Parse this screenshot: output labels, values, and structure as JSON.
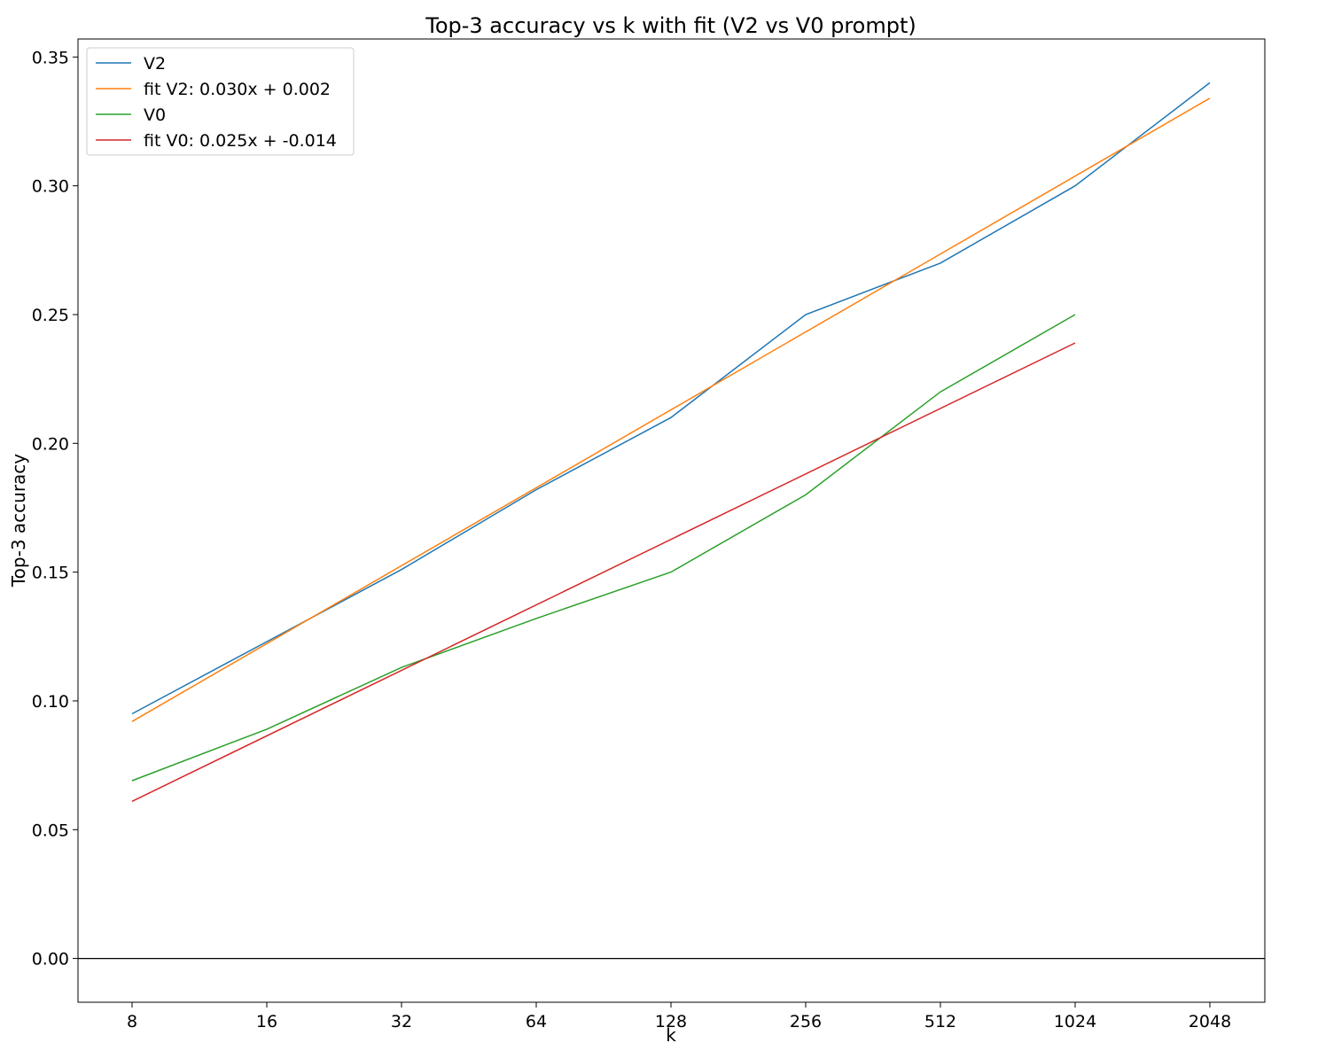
{
  "chart_data": {
    "type": "line",
    "title": "Top-3 accuracy vs k with fit (V2 vs V0 prompt)",
    "xlabel": "k",
    "ylabel": "Top-3 accuracy",
    "x_scale": "log2",
    "x": [
      8,
      16,
      32,
      64,
      128,
      256,
      512,
      1024,
      2048
    ],
    "xticks": [
      "8",
      "16",
      "32",
      "64",
      "128",
      "256",
      "512",
      "1024",
      "2048"
    ],
    "ylim": [
      -0.017,
      0.357
    ],
    "yticks": [
      "0.00",
      "0.05",
      "0.10",
      "0.15",
      "0.20",
      "0.25",
      "0.30",
      "0.35"
    ],
    "ytick_values": [
      0.0,
      0.05,
      0.1,
      0.15,
      0.2,
      0.25,
      0.3,
      0.35
    ],
    "hline": 0.0,
    "grid": false,
    "legend_position": "top-left",
    "series": [
      {
        "name": "V2",
        "color": "#1f77b4",
        "x": [
          8,
          16,
          32,
          64,
          128,
          256,
          512,
          1024,
          2048
        ],
        "values": [
          0.095,
          0.123,
          0.151,
          0.182,
          0.21,
          0.25,
          0.27,
          0.3,
          0.34
        ]
      },
      {
        "name": "fit V2: 0.030x + 0.002",
        "color": "#ff7f0e",
        "x": [
          8,
          2048
        ],
        "values": [
          0.092,
          0.334
        ]
      },
      {
        "name": "V0",
        "color": "#2ca02c",
        "x": [
          8,
          16,
          32,
          64,
          128,
          256,
          512,
          1024
        ],
        "values": [
          0.069,
          0.089,
          0.113,
          0.132,
          0.15,
          0.18,
          0.22,
          0.25
        ]
      },
      {
        "name": "fit V0: 0.025x + -0.014",
        "color": "#d62728",
        "x": [
          8,
          1024
        ],
        "values": [
          0.061,
          0.239
        ]
      }
    ]
  }
}
